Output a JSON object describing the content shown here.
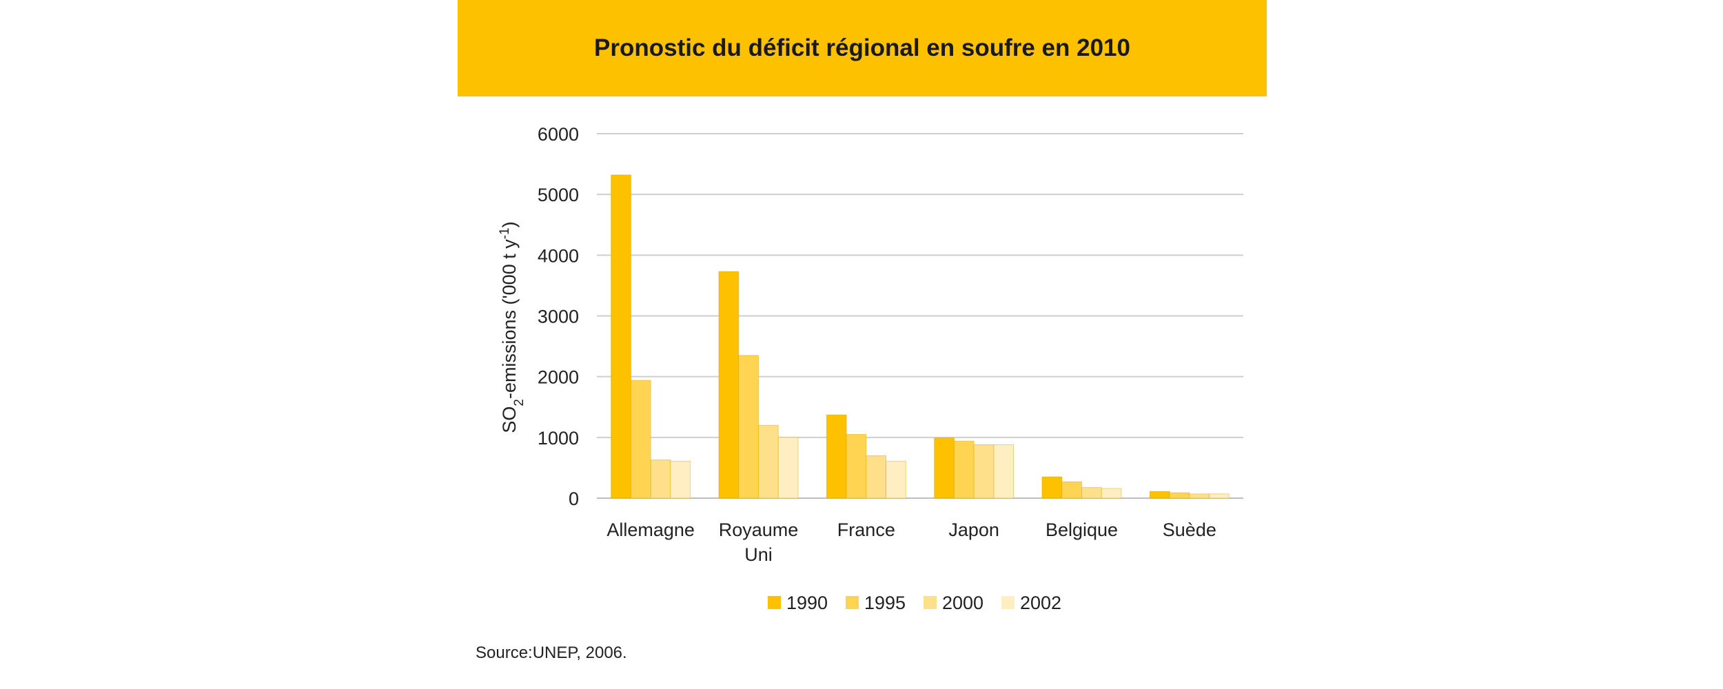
{
  "header": {
    "title": "Pronostic du déficit régional en soufre en 2010"
  },
  "source": "Source:UNEP, 2006.",
  "colors": {
    "banner": "#FDC100",
    "grid": "#cfcfcf",
    "axis": "#bfbfbf"
  },
  "chart_data": {
    "type": "bar",
    "title": "Pronostic du déficit régional en soufre en 2010",
    "xlabel": "",
    "ylabel": "SO2-emissions ('000 t y-1)",
    "ylim": [
      0,
      6000
    ],
    "yticks": [
      0,
      1000,
      2000,
      3000,
      4000,
      5000,
      6000
    ],
    "grid": true,
    "legend_position": "bottom",
    "categories": [
      [
        "Allemagne"
      ],
      [
        "Royaume",
        "Uni"
      ],
      [
        "France"
      ],
      [
        "Japon"
      ],
      [
        "Belgique"
      ],
      [
        "Suède"
      ]
    ],
    "series": [
      {
        "name": "1990",
        "color": "#FDC100",
        "values": [
          5320,
          3730,
          1370,
          990,
          350,
          110
        ]
      },
      {
        "name": "1995",
        "color": "#FED452",
        "values": [
          1940,
          2350,
          1050,
          940,
          270,
          90
        ]
      },
      {
        "name": "2000",
        "color": "#FEE08A",
        "values": [
          630,
          1200,
          700,
          880,
          175,
          70
        ]
      },
      {
        "name": "2002",
        "color": "#FFEEC2",
        "values": [
          610,
          1000,
          610,
          880,
          160,
          70
        ]
      }
    ]
  }
}
